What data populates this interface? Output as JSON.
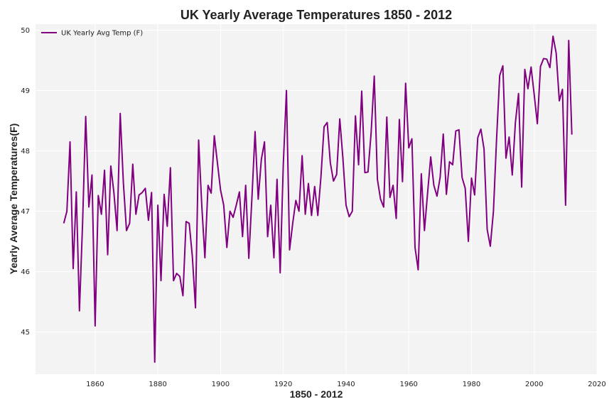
{
  "colors": {
    "plot_bg": "#f3f3f3",
    "grid": "#ffffff",
    "line": "#800080",
    "text": "#222222"
  },
  "chart_data": {
    "type": "line",
    "title": "UK Yearly Average Temperatures 1850 - 2012",
    "xlabel": "1850 - 2012",
    "ylabel": "Yearly Average Temperatures(F)",
    "xlim": [
      1841,
      2020
    ],
    "ylim": [
      44.3,
      50.1
    ],
    "xticks": [
      1860,
      1880,
      1900,
      1920,
      1940,
      1960,
      1980,
      2000,
      2020
    ],
    "yticks": [
      45,
      46,
      47,
      48,
      49,
      50
    ],
    "grid": true,
    "legend_position": "top-left",
    "series": [
      {
        "name": "UK Yearly Avg Temp (F)",
        "color": "#800080",
        "x": [
          1850,
          1851,
          1852,
          1853,
          1854,
          1855,
          1856,
          1857,
          1858,
          1859,
          1860,
          1861,
          1862,
          1863,
          1864,
          1865,
          1866,
          1867,
          1868,
          1869,
          1870,
          1871,
          1872,
          1873,
          1874,
          1875,
          1876,
          1877,
          1878,
          1879,
          1880,
          1881,
          1882,
          1883,
          1884,
          1885,
          1886,
          1887,
          1888,
          1889,
          1890,
          1891,
          1892,
          1893,
          1894,
          1895,
          1896,
          1897,
          1898,
          1899,
          1900,
          1901,
          1902,
          1903,
          1904,
          1905,
          1906,
          1907,
          1908,
          1909,
          1910,
          1911,
          1912,
          1913,
          1914,
          1915,
          1916,
          1917,
          1918,
          1919,
          1920,
          1921,
          1922,
          1923,
          1924,
          1925,
          1926,
          1927,
          1928,
          1929,
          1930,
          1931,
          1932,
          1933,
          1934,
          1935,
          1936,
          1937,
          1938,
          1939,
          1940,
          1941,
          1942,
          1943,
          1944,
          1945,
          1946,
          1947,
          1948,
          1949,
          1950,
          1951,
          1952,
          1953,
          1954,
          1955,
          1956,
          1957,
          1958,
          1959,
          1960,
          1961,
          1962,
          1963,
          1964,
          1965,
          1966,
          1967,
          1968,
          1969,
          1970,
          1971,
          1972,
          1973,
          1974,
          1975,
          1976,
          1977,
          1978,
          1979,
          1980,
          1981,
          1982,
          1983,
          1984,
          1985,
          1986,
          1987,
          1988,
          1989,
          1990,
          1991,
          1992,
          1993,
          1994,
          1995,
          1996,
          1997,
          1998,
          1999,
          2000,
          2001,
          2002,
          2003,
          2004,
          2005,
          2006,
          2007,
          2008,
          2009,
          2010,
          2011,
          2012
        ],
        "y": [
          46.8,
          47.0,
          48.15,
          46.05,
          47.32,
          45.35,
          46.8,
          48.57,
          47.07,
          47.6,
          45.1,
          47.26,
          46.95,
          47.68,
          46.28,
          47.75,
          47.3,
          46.68,
          48.62,
          47.48,
          46.68,
          46.8,
          47.78,
          46.95,
          47.27,
          47.31,
          47.38,
          46.85,
          47.31,
          44.5,
          47.1,
          45.85,
          47.28,
          46.75,
          47.72,
          45.85,
          45.97,
          45.92,
          45.6,
          46.83,
          46.8,
          46.25,
          45.4,
          48.18,
          47.1,
          46.23,
          47.43,
          47.3,
          48.25,
          47.8,
          47.35,
          47.1,
          46.4,
          47.0,
          46.9,
          47.1,
          47.32,
          46.58,
          47.43,
          46.22,
          47.23,
          48.32,
          47.2,
          47.86,
          48.15,
          46.58,
          47.1,
          46.23,
          47.53,
          45.98,
          47.78,
          49.0,
          46.36,
          46.8,
          47.18,
          47.0,
          47.92,
          46.95,
          47.46,
          46.93,
          47.41,
          46.93,
          47.57,
          48.4,
          48.47,
          47.8,
          47.5,
          47.61,
          48.53,
          47.88,
          47.1,
          46.91,
          47.0,
          48.58,
          47.77,
          48.99,
          47.64,
          47.65,
          48.3,
          49.24,
          47.53,
          47.2,
          47.07,
          48.56,
          47.23,
          47.43,
          46.88,
          48.52,
          47.49,
          49.12,
          48.05,
          48.2,
          46.4,
          46.03,
          47.62,
          46.68,
          47.3,
          47.9,
          47.43,
          47.25,
          47.56,
          48.28,
          47.28,
          47.82,
          47.77,
          48.33,
          48.35,
          47.56,
          47.38,
          46.5,
          47.55,
          47.27,
          48.22,
          48.36,
          48.03,
          46.7,
          46.42,
          47.0,
          48.2,
          49.25,
          49.41,
          47.88,
          48.23,
          47.6,
          48.47,
          48.95,
          47.4,
          49.35,
          49.03,
          49.39,
          48.93,
          48.45,
          49.4,
          49.53,
          49.52,
          49.38,
          49.9,
          49.62,
          48.83,
          49.02,
          47.1,
          49.83,
          48.27
        ]
      }
    ]
  }
}
